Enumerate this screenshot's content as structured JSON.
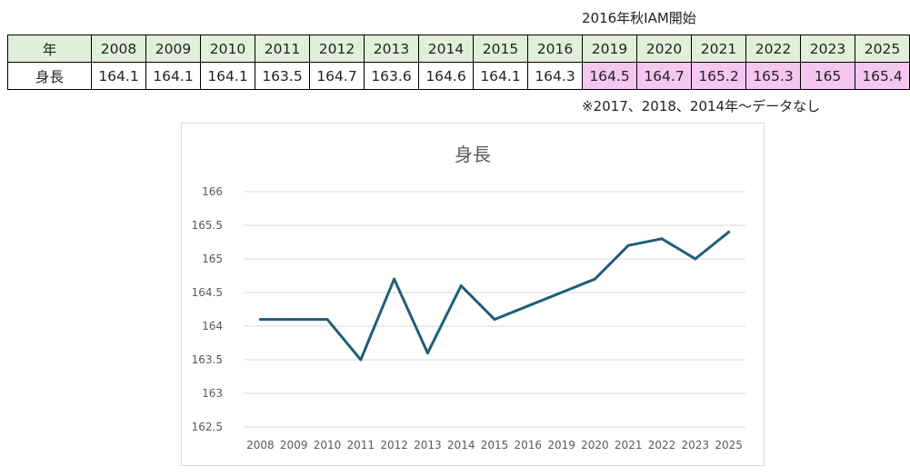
{
  "note_top": "2016年秋IAM開始",
  "note_bottom": "※2017、2018、2014年～データなし",
  "table": {
    "row_labels": [
      "年",
      "身長"
    ],
    "years": [
      "2008",
      "2009",
      "2010",
      "2011",
      "2012",
      "2013",
      "2014",
      "2015",
      "2016",
      "2019",
      "2020",
      "2021",
      "2022",
      "2023",
      "2025"
    ],
    "heights": [
      "164.1",
      "164.1",
      "164.1",
      "163.5",
      "164.7",
      "163.6",
      "164.6",
      "164.1",
      "164.3",
      "164.5",
      "164.7",
      "165.2",
      "165.3",
      "165",
      "165.4"
    ],
    "highlight_from_year": "2019",
    "colors": {
      "header_bg": "#e2efda",
      "highlight_bg": "#f4c6f0"
    }
  },
  "chart_data": {
    "type": "line",
    "title": "身長",
    "categories": [
      "2008",
      "2009",
      "2010",
      "2011",
      "2012",
      "2013",
      "2014",
      "2015",
      "2016",
      "2019",
      "2020",
      "2021",
      "2022",
      "2023",
      "2025"
    ],
    "series": [
      {
        "values": [
          164.1,
          164.1,
          164.1,
          163.5,
          164.7,
          163.6,
          164.6,
          164.1,
          164.3,
          164.5,
          164.7,
          165.2,
          165.3,
          165,
          165.4
        ]
      }
    ],
    "ylim": [
      162.5,
      166
    ],
    "y_ticks": [
      "166",
      "165.5",
      "165",
      "164.5",
      "164",
      "163.5",
      "163",
      "162.5"
    ],
    "grid": true,
    "line_color": "#1f5f7a",
    "xlabel": "",
    "ylabel": ""
  }
}
